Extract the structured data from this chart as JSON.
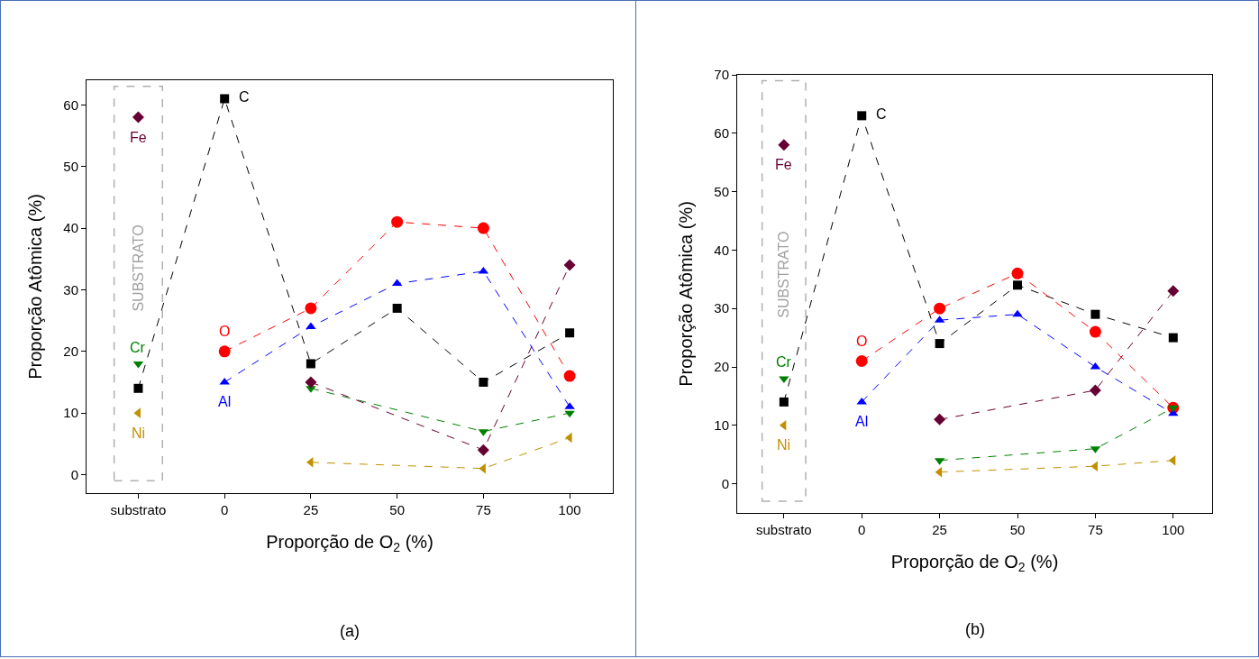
{
  "chart_data": [
    {
      "type": "line",
      "xlabel": "Proporção de O$_{2}$ (%)",
      "ylabel": "Proporção Atômica (%)",
      "categories": [
        "substrato",
        "0",
        "25",
        "50",
        "75",
        "100"
      ],
      "ylim": [
        -3,
        64
      ],
      "yticks": [
        0,
        10,
        20,
        30,
        40,
        50,
        60
      ],
      "grid": false,
      "legend": false,
      "line_style": "dashed",
      "annotations": [
        "SUBSTRATO",
        "(a)"
      ],
      "series": [
        {
          "name": "C",
          "color": "#000000",
          "marker": "square",
          "values": [
            14,
            61,
            18,
            27,
            15,
            23
          ]
        },
        {
          "name": "O",
          "color": "#ff0000",
          "marker": "circle",
          "values": [
            null,
            20,
            27,
            41,
            40,
            16
          ]
        },
        {
          "name": "Al",
          "color": "#0000ff",
          "marker": "triangle-up",
          "values": [
            null,
            15,
            24,
            31,
            33,
            11
          ]
        },
        {
          "name": "Cr",
          "color": "#008000",
          "marker": "triangle-down",
          "values": [
            18,
            null,
            14,
            null,
            7,
            10
          ]
        },
        {
          "name": "Fe",
          "color": "#660033",
          "marker": "diamond",
          "values": [
            58,
            null,
            15,
            null,
            4,
            34
          ]
        },
        {
          "name": "Ni",
          "color": "#c09000",
          "marker": "triangle-left",
          "values": [
            10,
            null,
            2,
            null,
            1,
            6
          ]
        }
      ]
    },
    {
      "type": "line",
      "xlabel": "Proporção de O$_{2}$ (%)",
      "ylabel": "Proporção Atômica (%)",
      "categories": [
        "substrato",
        "0",
        "25",
        "50",
        "75",
        "100"
      ],
      "ylim": [
        -5,
        70
      ],
      "yticks": [
        0,
        10,
        20,
        30,
        40,
        50,
        60,
        70
      ],
      "grid": false,
      "legend": false,
      "line_style": "dashed",
      "annotations": [
        "SUBSTRATO",
        "(b)"
      ],
      "series": [
        {
          "name": "C",
          "color": "#000000",
          "marker": "square",
          "values": [
            14,
            63,
            24,
            34,
            29,
            25
          ]
        },
        {
          "name": "O",
          "color": "#ff0000",
          "marker": "circle",
          "values": [
            null,
            21,
            30,
            36,
            26,
            13
          ]
        },
        {
          "name": "Al",
          "color": "#0000ff",
          "marker": "triangle-up",
          "values": [
            null,
            14,
            28,
            29,
            20,
            12
          ]
        },
        {
          "name": "Cr",
          "color": "#008000",
          "marker": "triangle-down",
          "values": [
            18,
            null,
            4,
            null,
            6,
            13
          ]
        },
        {
          "name": "Fe",
          "color": "#660033",
          "marker": "diamond",
          "values": [
            58,
            null,
            11,
            null,
            16,
            33
          ]
        },
        {
          "name": "Ni",
          "color": "#c09000",
          "marker": "triangle-left",
          "values": [
            10,
            null,
            2,
            null,
            3,
            4
          ]
        }
      ]
    }
  ]
}
